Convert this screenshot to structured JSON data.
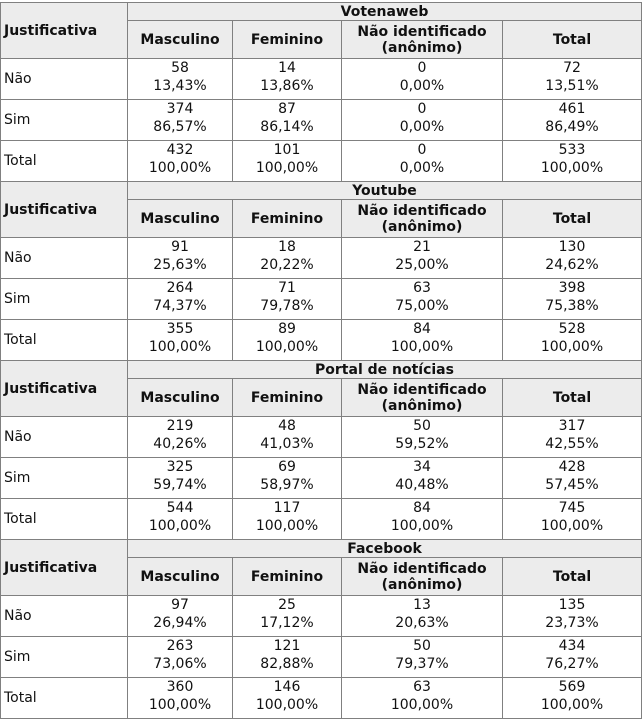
{
  "sections": [
    {
      "title": "Votenaweb",
      "columns": [
        "Justificativa",
        "Masculino",
        "Feminino",
        "Não identificado (anônimo)",
        "Total"
      ],
      "rows": [
        {
          "label": "Não",
          "cells": [
            [
              58,
              "13,43%"
            ],
            [
              14,
              "13,86%"
            ],
            [
              0,
              "0,00%"
            ],
            [
              72,
              "13,51%"
            ]
          ]
        },
        {
          "label": "Sim",
          "cells": [
            [
              374,
              "86,57%"
            ],
            [
              87,
              "86,14%"
            ],
            [
              0,
              "0,00%"
            ],
            [
              461,
              "86,49%"
            ]
          ]
        },
        {
          "label": "Total",
          "cells": [
            [
              432,
              "100,00%"
            ],
            [
              101,
              "100,00%"
            ],
            [
              0,
              "0,00%"
            ],
            [
              533,
              "100,00%"
            ]
          ]
        }
      ]
    },
    {
      "title": "Youtube",
      "columns": [
        "Justificativa",
        "Masculino",
        "Feminino",
        "Não identificado (anônimo)",
        "Total"
      ],
      "rows": [
        {
          "label": "Não",
          "cells": [
            [
              91,
              "25,63%"
            ],
            [
              18,
              "20,22%"
            ],
            [
              21,
              "25,00%"
            ],
            [
              130,
              "24,62%"
            ]
          ]
        },
        {
          "label": "Sim",
          "cells": [
            [
              264,
              "74,37%"
            ],
            [
              71,
              "79,78%"
            ],
            [
              63,
              "75,00%"
            ],
            [
              398,
              "75,38%"
            ]
          ]
        },
        {
          "label": "Total",
          "cells": [
            [
              355,
              "100,00%"
            ],
            [
              89,
              "100,00%"
            ],
            [
              84,
              "100,00%"
            ],
            [
              528,
              "100,00%"
            ]
          ]
        }
      ]
    },
    {
      "title": "Portal de notícias",
      "columns": [
        "Justificativa",
        "Masculino",
        "Feminino",
        "Não identificado (anônimo)",
        "Total"
      ],
      "rows": [
        {
          "label": "Não",
          "cells": [
            [
              219,
              "40,26%"
            ],
            [
              48,
              "41,03%"
            ],
            [
              50,
              "59,52%"
            ],
            [
              317,
              "42,55%"
            ]
          ]
        },
        {
          "label": "Sim",
          "cells": [
            [
              325,
              "59,74%"
            ],
            [
              69,
              "58,97%"
            ],
            [
              34,
              "40,48%"
            ],
            [
              428,
              "57,45%"
            ]
          ]
        },
        {
          "label": "Total",
          "cells": [
            [
              544,
              "100,00%"
            ],
            [
              117,
              "100,00%"
            ],
            [
              84,
              "100,00%"
            ],
            [
              745,
              "100,00%"
            ]
          ]
        }
      ]
    },
    {
      "title": "Facebook",
      "columns": [
        "Justificativa",
        "Masculino",
        "Feminino",
        "Não identificado (anônimo)",
        "Total"
      ],
      "rows": [
        {
          "label": "Não",
          "cells": [
            [
              97,
              "26,94%"
            ],
            [
              25,
              "17,12%"
            ],
            [
              13,
              "20,63%"
            ],
            [
              135,
              "23,73%"
            ]
          ]
        },
        {
          "label": "Sim",
          "cells": [
            [
              263,
              "73,06%"
            ],
            [
              121,
              "82,88%"
            ],
            [
              50,
              "79,37%"
            ],
            [
              434,
              "76,27%"
            ]
          ]
        },
        {
          "label": "Total",
          "cells": [
            [
              360,
              "100,00%"
            ],
            [
              146,
              "100,00%"
            ],
            [
              63,
              "100,00%"
            ],
            [
              569,
              "100,00%"
            ]
          ]
        }
      ]
    }
  ]
}
